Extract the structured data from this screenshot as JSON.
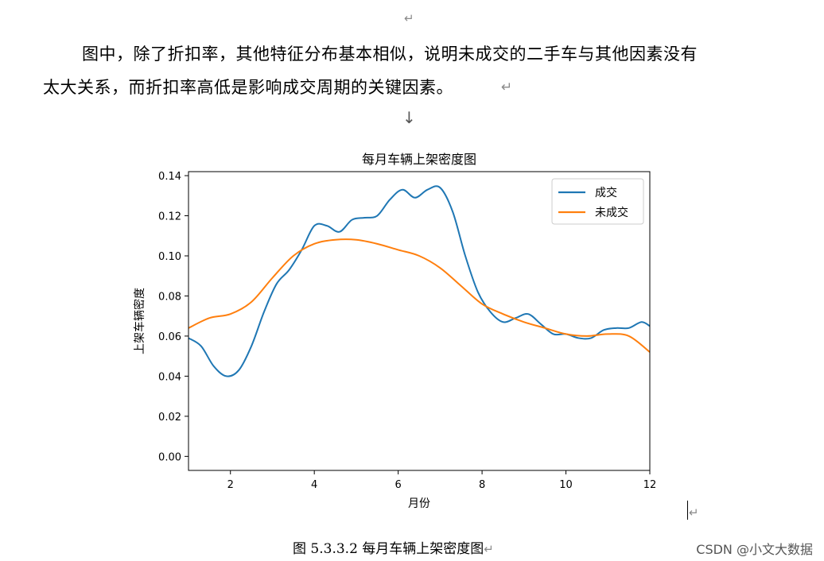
{
  "document": {
    "marks": {
      "para_mark": "↵",
      "line_break": "↓"
    },
    "paragraph": {
      "line1": "图中，除了折扣率，其他特征分布基本相似，说明未成交的二手车与其他因素没有",
      "line2": "太大关系，而折扣率高低是影响成交周期的关键因素。"
    },
    "caption": "图 5.3.3.2  每月车辆上架密度图",
    "watermark": "CSDN @小文大数据"
  },
  "chart_data": {
    "type": "line",
    "title": "每月车辆上架密度图",
    "xlabel": "月份",
    "ylabel": "上架车辆密度",
    "xlim": [
      1,
      12
    ],
    "ylim": [
      -0.007,
      0.142
    ],
    "xticks": [
      2,
      4,
      6,
      8,
      10,
      12
    ],
    "yticks": [
      0.0,
      0.02,
      0.04,
      0.06,
      0.08,
      0.1,
      0.12,
      0.14
    ],
    "grid": false,
    "legend_position": "top-right",
    "series": [
      {
        "name": "成交",
        "color": "#1f77b4",
        "x": [
          1.0,
          1.3,
          1.6,
          1.9,
          2.2,
          2.5,
          2.8,
          3.1,
          3.4,
          3.7,
          4.0,
          4.3,
          4.6,
          4.9,
          5.2,
          5.5,
          5.8,
          6.1,
          6.4,
          6.7,
          7.0,
          7.3,
          7.6,
          7.9,
          8.2,
          8.5,
          8.8,
          9.1,
          9.4,
          9.7,
          10.0,
          10.3,
          10.6,
          10.9,
          11.2,
          11.5,
          11.8,
          12.0
        ],
        "y": [
          0.059,
          0.055,
          0.045,
          0.04,
          0.043,
          0.055,
          0.072,
          0.086,
          0.093,
          0.103,
          0.115,
          0.115,
          0.112,
          0.118,
          0.119,
          0.12,
          0.128,
          0.133,
          0.129,
          0.133,
          0.134,
          0.122,
          0.1,
          0.082,
          0.072,
          0.067,
          0.069,
          0.071,
          0.066,
          0.061,
          0.061,
          0.059,
          0.059,
          0.063,
          0.064,
          0.064,
          0.067,
          0.065
        ]
      },
      {
        "name": "未成交",
        "color": "#ff7f0e",
        "x": [
          1.0,
          1.5,
          2.0,
          2.5,
          3.0,
          3.5,
          4.0,
          4.5,
          5.0,
          5.5,
          6.0,
          6.5,
          7.0,
          7.5,
          8.0,
          8.5,
          9.0,
          9.5,
          10.0,
          10.5,
          11.0,
          11.5,
          12.0
        ],
        "y": [
          0.064,
          0.069,
          0.071,
          0.077,
          0.089,
          0.1,
          0.106,
          0.108,
          0.108,
          0.106,
          0.103,
          0.1,
          0.094,
          0.085,
          0.076,
          0.071,
          0.067,
          0.064,
          0.061,
          0.06,
          0.061,
          0.06,
          0.052
        ]
      }
    ]
  }
}
